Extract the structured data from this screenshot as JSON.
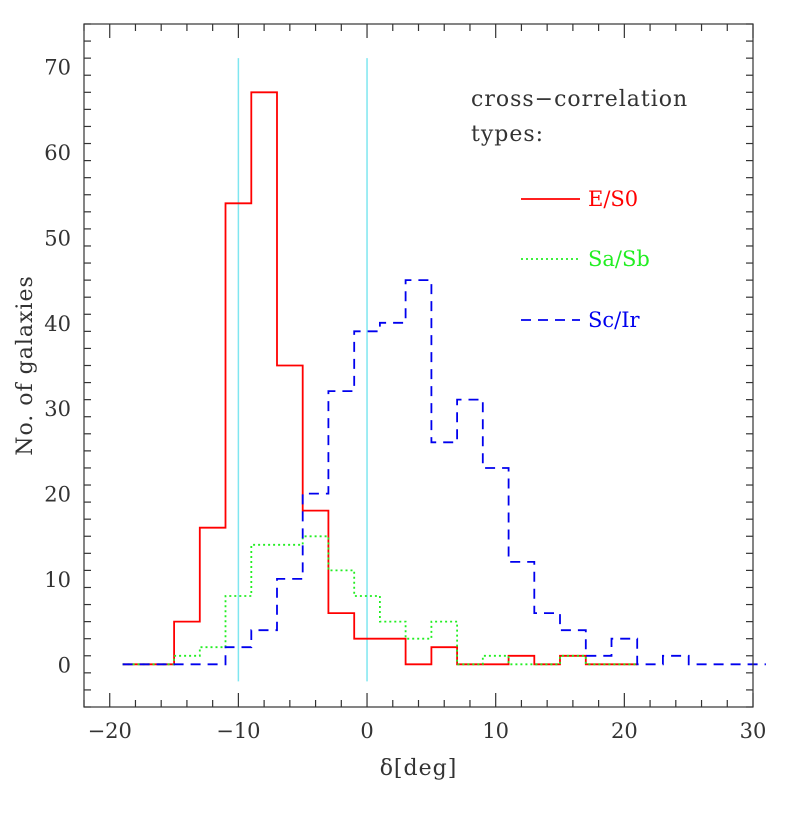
{
  "chart_data": {
    "type": "line",
    "title": "",
    "xlabel": "δ[deg]",
    "ylabel": "No. of galaxies",
    "xlim": [
      -22,
      30
    ],
    "ylim": [
      -5,
      75
    ],
    "x_ticks": [
      -20,
      -10,
      0,
      10,
      20,
      30
    ],
    "y_ticks": [
      0,
      10,
      20,
      30,
      40,
      50,
      60,
      70
    ],
    "grid": false,
    "legend": {
      "title": "cross-correlation types:",
      "title_lines": [
        "cross−correlation",
        "types:"
      ],
      "placement": "top-right",
      "entries": [
        "E/S0",
        "Sa/Sb",
        "Sc/Ir"
      ]
    },
    "reference_lines": {
      "x": [
        -10,
        0
      ],
      "color": "#7fe6f0",
      "y_range": [
        -2,
        71
      ]
    },
    "bin_edges": [
      -19,
      -17,
      -15,
      -13,
      -11,
      -9,
      -7,
      -5,
      -3,
      -1,
      1,
      3,
      5,
      7,
      9,
      11,
      13,
      15,
      17,
      19,
      21,
      23,
      25,
      27,
      29,
      31
    ],
    "series": [
      {
        "name": "E/S0",
        "color": "#ff0000",
        "style": "solid",
        "start": -19,
        "counts": [
          0,
          0,
          5,
          16,
          54,
          67,
          35,
          18,
          6,
          3,
          3,
          0,
          2,
          0,
          0,
          1,
          0,
          1,
          0,
          0
        ]
      },
      {
        "name": "Sa/Sb",
        "color": "#22ee22",
        "style": "dotted",
        "start": -19,
        "counts": [
          0,
          0,
          1,
          2,
          8,
          14,
          14,
          15,
          11,
          8,
          5,
          3,
          5,
          0,
          1,
          0,
          0,
          1,
          0,
          0
        ]
      },
      {
        "name": "Sc/Ir",
        "color": "#0000ee",
        "style": "dashed",
        "start": -19,
        "counts": [
          0,
          0,
          0,
          0,
          2,
          4,
          10,
          20,
          32,
          39,
          40,
          45,
          26,
          31,
          23,
          12,
          6,
          4,
          1,
          3,
          0,
          1,
          0,
          0,
          0
        ]
      }
    ]
  }
}
